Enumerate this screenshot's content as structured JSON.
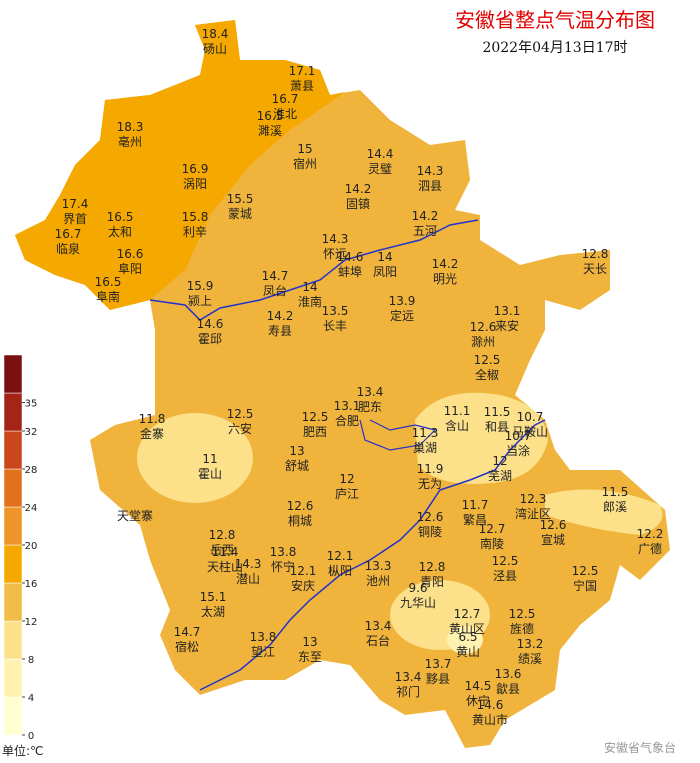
{
  "header": {
    "title": "安徽省整点气温分布图",
    "time": "2022年04月13日17时"
  },
  "legend": {
    "unit": "单位:℃",
    "lim": [
      0,
      40
    ],
    "ticks": [
      0,
      4,
      8,
      12,
      16,
      20,
      24,
      28,
      32,
      35
    ],
    "steps": [
      0,
      4,
      8,
      12,
      16,
      20,
      24,
      28,
      32,
      36,
      40
    ],
    "colors": [
      "#FFFFD2",
      "#FFF2B0",
      "#FCE08A",
      "#F2BC48",
      "#F5A800",
      "#EE9428",
      "#E0701E",
      "#C9471A",
      "#A52418",
      "#7A1010"
    ]
  },
  "stations": [
    {
      "name": "砀山",
      "value": 18.4
    },
    {
      "name": "萧县",
      "value": 17.1
    },
    {
      "name": "淮北",
      "value": 16.7
    },
    {
      "name": "濉溪",
      "value": 16.5
    },
    {
      "name": "亳州",
      "value": 18.3
    },
    {
      "name": "宿州",
      "value": 15
    },
    {
      "name": "灵璧",
      "value": 14.4
    },
    {
      "name": "泗县",
      "value": 14.3
    },
    {
      "name": "涡阳",
      "value": 16.9
    },
    {
      "name": "固镇",
      "value": 14.2
    },
    {
      "name": "界首",
      "value": 17.4
    },
    {
      "name": "太和",
      "value": 16.5
    },
    {
      "name": "利辛",
      "value": 15.8
    },
    {
      "name": "蒙城",
      "value": 15.5
    },
    {
      "name": "五河",
      "value": 14.2
    },
    {
      "name": "临泉",
      "value": 16.7
    },
    {
      "name": "怀远",
      "value": 14.3
    },
    {
      "name": "蚌埠",
      "value": 14.6
    },
    {
      "name": "凤阳",
      "value": 14
    },
    {
      "name": "明光",
      "value": 14.2
    },
    {
      "name": "阜阳",
      "value": 16.6
    },
    {
      "name": "天长",
      "value": 12.8
    },
    {
      "name": "凤台",
      "value": 14.7
    },
    {
      "name": "淮南",
      "value": 14
    },
    {
      "name": "颍上",
      "value": 15.9
    },
    {
      "name": "阜南",
      "value": 16.5
    },
    {
      "name": "长丰",
      "value": 13.5
    },
    {
      "name": "定远",
      "value": 13.9
    },
    {
      "name": "寿县",
      "value": 14.2
    },
    {
      "name": "霍邱",
      "value": 14.6
    },
    {
      "name": "来安",
      "value": 13.1
    },
    {
      "name": "滁州",
      "value": 12.6
    },
    {
      "name": "全椒",
      "value": 12.5
    },
    {
      "name": "肥东",
      "value": 13.4
    },
    {
      "name": "合肥",
      "value": 13.1
    },
    {
      "name": "金寨",
      "value": 11.8
    },
    {
      "name": "六安",
      "value": 12.5
    },
    {
      "name": "肥西",
      "value": 12.5
    },
    {
      "name": "含山",
      "value": 11.1
    },
    {
      "name": "和县",
      "value": 11.5
    },
    {
      "name": "马鞍山",
      "value": 10.7
    },
    {
      "name": "当涂",
      "value": 10.7
    },
    {
      "name": "巢湖",
      "value": 11.3
    },
    {
      "name": "舒城",
      "value": 13
    },
    {
      "name": "霍山",
      "value": 11
    },
    {
      "name": "芜湖",
      "value": 12
    },
    {
      "name": "庐江",
      "value": 12
    },
    {
      "name": "无为",
      "value": 11.9
    },
    {
      "name": "郎溪",
      "value": 11.5
    },
    {
      "name": "繁昌",
      "value": 11.7
    },
    {
      "name": "湾沚区",
      "value": 12.3
    },
    {
      "name": "桐城",
      "value": 12.6
    },
    {
      "name": "铜陵",
      "value": 12.6
    },
    {
      "name": "宣城",
      "value": 12.6
    },
    {
      "name": "广德",
      "value": 12.2
    },
    {
      "name": "南陵",
      "value": 12.7
    },
    {
      "name": "岳西",
      "value": 12.8
    },
    {
      "name": "天柱山",
      "value": 11.4
    },
    {
      "name": "潜山",
      "value": 14.3
    },
    {
      "name": "怀宁",
      "value": 13.8
    },
    {
      "name": "安庆",
      "value": 12.1
    },
    {
      "name": "枞阳",
      "value": 12.1
    },
    {
      "name": "池州",
      "value": 13.3
    },
    {
      "name": "青阳",
      "value": 12.8
    },
    {
      "name": "泾县",
      "value": 12.5
    },
    {
      "name": "宁国",
      "value": 12.5
    },
    {
      "name": "太湖",
      "value": 15.1
    },
    {
      "name": "九华山",
      "value": 9.6
    },
    {
      "name": "石台",
      "value": 13.4
    },
    {
      "name": "黄山区",
      "value": 12.7
    },
    {
      "name": "旌德",
      "value": 12.5
    },
    {
      "name": "宿松",
      "value": 14.7
    },
    {
      "name": "望江",
      "value": 13.8
    },
    {
      "name": "东至",
      "value": 13
    },
    {
      "name": "黄山",
      "value": 6.5
    },
    {
      "name": "绩溪",
      "value": 13.2
    },
    {
      "name": "祁门",
      "value": 13.4
    },
    {
      "name": "黟县",
      "value": 13.7
    },
    {
      "name": "休宁",
      "value": 14.5
    },
    {
      "name": "歙县",
      "value": 13.6
    },
    {
      "name": "黄山市",
      "value": 14.6
    }
  ],
  "places": [
    "天堂寨"
  ],
  "watermark": "安徽省气象台"
}
